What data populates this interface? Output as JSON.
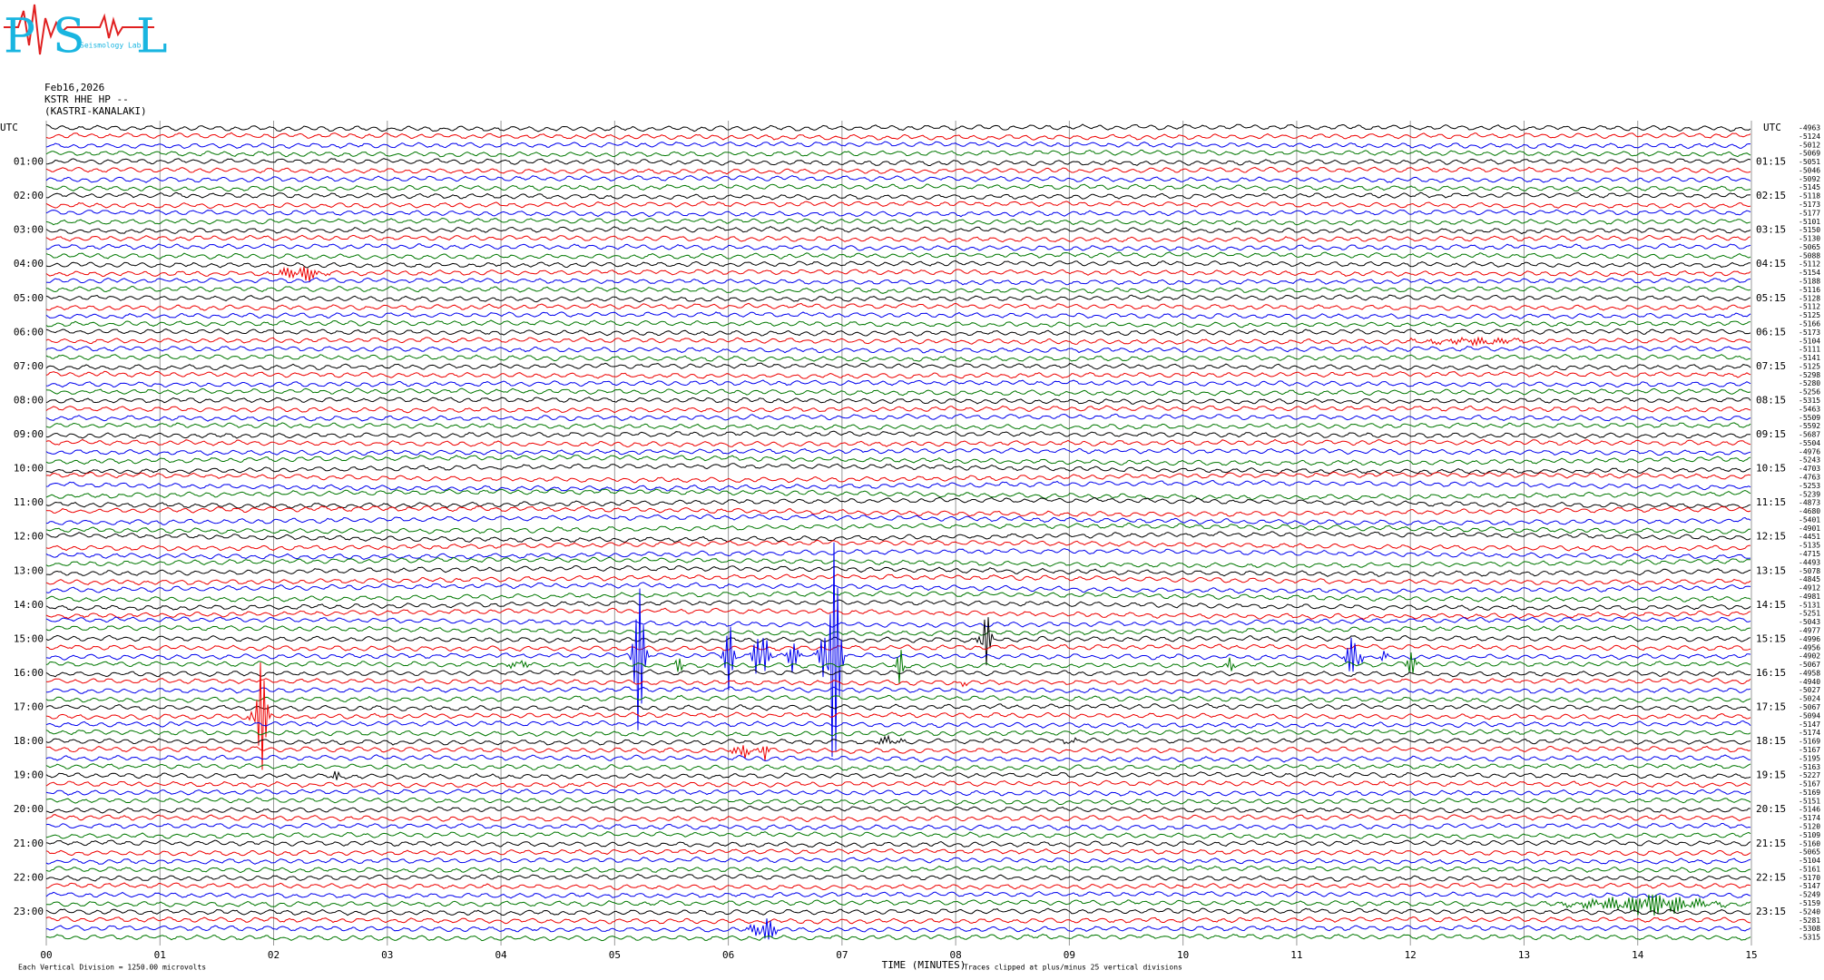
{
  "header": {
    "logo": {
      "letters": [
        "P",
        "S",
        "L"
      ],
      "name": "Seismology Lab"
    },
    "date": "Feb16,2026",
    "station": "KSTR HHE HP --",
    "location": "(KASTRI-KANALAKI)"
  },
  "axes": {
    "left_title": "UTC",
    "right_title": "UTC",
    "left_labels": [
      "01:00",
      "02:00",
      "03:00",
      "04:00",
      "05:00",
      "06:00",
      "07:00",
      "08:00",
      "09:00",
      "10:00",
      "11:00",
      "12:00",
      "13:00",
      "14:00",
      "15:00",
      "16:00",
      "17:00",
      "18:00",
      "19:00",
      "20:00",
      "21:00",
      "22:00",
      "23:00"
    ],
    "right_labels": [
      "01:15",
      "02:15",
      "03:15",
      "04:15",
      "05:15",
      "06:15",
      "07:15",
      "08:15",
      "09:15",
      "10:15",
      "11:15",
      "12:15",
      "13:15",
      "14:15",
      "15:15",
      "16:15",
      "17:15",
      "18:15",
      "19:15",
      "20:15",
      "21:15",
      "22:15",
      "23:15"
    ],
    "minute_labels": [
      "00",
      "01",
      "02",
      "03",
      "04",
      "05",
      "06",
      "07",
      "08",
      "09",
      "10",
      "11",
      "12",
      "13",
      "14",
      "15"
    ],
    "x_title": "TIME (MINUTES)"
  },
  "trace_offsets": [
    "-4963",
    "-5124",
    "-5012",
    "-5069",
    "-5051",
    "-5046",
    "-5092",
    "-5145",
    "-5118",
    "-5173",
    "-5177",
    "-5101",
    "-5150",
    "-5130",
    "-5065",
    "-5088",
    "-5112",
    "-5154",
    "-5188",
    "-5116",
    "-5128",
    "-5112",
    "-5125",
    "-5166",
    "-5173",
    "-5104",
    "-5111",
    "-5141",
    "-5125",
    "-5298",
    "-5280",
    "-5256",
    "-5315",
    "-5463",
    "-5509",
    "-5592",
    "-5687",
    "-5504",
    "-4976",
    "-5243",
    "-4703",
    "-4763",
    "-5253",
    "-5239",
    "-4873",
    "-4680",
    "-5401",
    "-4901",
    "-4451",
    "-5135",
    "-4715",
    "-4493",
    "-5078",
    "-4845",
    "-4912",
    "-4981",
    "-5131",
    "-5251",
    "-5043",
    "-4977",
    "-4996",
    "-4956",
    "-4902",
    "-5067",
    "-4958",
    "-4940",
    "-5027",
    "-5024",
    "-5067",
    "-5094",
    "-5147",
    "-5174",
    "-5169",
    "-5167",
    "-5195",
    "-5163",
    "-5227",
    "-5167",
    "-5169",
    "-5151",
    "-5146",
    "-5174",
    "-5120",
    "-5109",
    "-5160",
    "-5065",
    "-5104",
    "-5161",
    "-5170",
    "-5147",
    "-5249",
    "-5159",
    "-5240",
    "-5281",
    "-5308",
    "-5315"
  ],
  "footer": {
    "scale_note": "Each Vertical Division = 1250.00 microvolts",
    "clip_note": "Traces clipped at plus/minus 25 vertical divisions"
  }
}
